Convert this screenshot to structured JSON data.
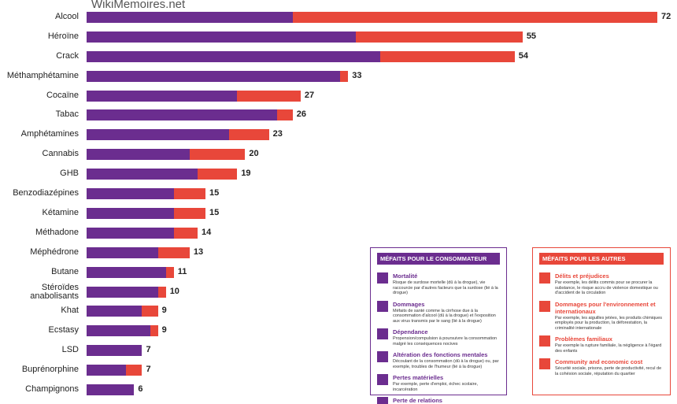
{
  "watermark": "WikiMemoires.net",
  "chart_data": {
    "type": "stacked-barh",
    "categories": [
      "Alcool",
      "Héroïne",
      "Crack",
      "Méthamphétamine",
      "Cocaïne",
      "Tabac",
      "Amphétamines",
      "Cannabis",
      "GHB",
      "Benzodiazépines",
      "Kétamine",
      "Méthadone",
      "Méphédrone",
      "Butane",
      "Stéroïdes anabolisants",
      "Khat",
      "Ecstasy",
      "LSD",
      "Buprénorphine",
      "Champignons"
    ],
    "series": [
      {
        "name": "MÉFAITS POUR LE CONSOMMATEUR",
        "color": "#6b2d8f",
        "values": [
          26,
          34,
          37,
          32,
          19,
          24,
          18,
          13,
          14,
          11,
          11,
          11,
          9,
          10,
          9,
          7,
          8,
          7,
          5,
          6
        ]
      },
      {
        "name": "MÉFAITS POUR LES AUTRES",
        "color": "#e8473a",
        "values": [
          46,
          21,
          17,
          1,
          8,
          2,
          5,
          7,
          5,
          4,
          4,
          3,
          4,
          1,
          1,
          2,
          1,
          0,
          2,
          0
        ]
      }
    ],
    "totals": [
      72,
      55,
      54,
      33,
      27,
      26,
      23,
      20,
      19,
      15,
      15,
      14,
      13,
      11,
      10,
      9,
      9,
      7,
      7,
      6
    ],
    "legend": {
      "user_items": [
        {
          "title": "Mortalité",
          "text": "Risque de surdose mortelle (dû à la drogue), vie raccourcie par d'autres facteurs que la surdose (lié à la drogue)"
        },
        {
          "title": "Dommages",
          "text": "Méfaits de santé comme la cirrhose due à la consommation d'alcool (dû à la drogue) et l'exposition aux virus transmis par le sang (lié à la drogue)"
        },
        {
          "title": "Dépendance",
          "text": "Propension/compulsion à poursuivre la consommation malgré les conséquences nocives"
        },
        {
          "title": "Altération des fonctions mentales",
          "text": "Découlant de la consommation (dû à la drogue) ou, par exemple, troubles de l'humeur (lié à la drogue)"
        },
        {
          "title": "Pertes matérielles",
          "text": "Par exemple, perte d'emploi, échec scolaire, incarcération"
        },
        {
          "title": "Perte de relations"
        }
      ],
      "others_items": [
        {
          "title": "Délits et préjudices",
          "text": "Par exemple, les délits commis pour se procurer la substance, le risque accru de violence domestique ou d'accident de la circulation"
        },
        {
          "title": "Dommages pour l'environnement et internationaux",
          "text": "Par exemple, les aiguilles jetées, les produits chimiques employés pour la production, la déforestation, la criminalité internationale"
        },
        {
          "title": "Problèmes familiaux",
          "text": "Par exemple la rupture familiale, la négligence à l'égard des enfants"
        },
        {
          "title": "Community and economic cost",
          "text": "Sécurité sociale, prisons, perte de productivité, recul de la cohésion sociale, réputation du quartier"
        }
      ]
    }
  }
}
